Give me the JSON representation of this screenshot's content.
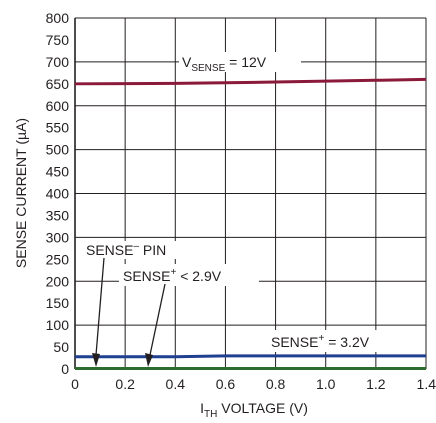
{
  "chart_data": {
    "type": "line",
    "xlabel": {
      "main": "I",
      "sub": "TH",
      "rest": " VOLTAGE (V)"
    },
    "ylabel": "SENSE CURRENT (µA)",
    "xlim": [
      0,
      1.4
    ],
    "ylim": [
      0,
      800
    ],
    "x_ticks": [
      "0",
      "0.2",
      "0.4",
      "0.6",
      "0.8",
      "1.0",
      "1.2",
      "1.4"
    ],
    "y_ticks": [
      "0",
      "50",
      "100",
      "150",
      "200",
      "250",
      "300",
      "350",
      "400",
      "450",
      "500",
      "550",
      "600",
      "650",
      "700",
      "750",
      "800"
    ],
    "grid": true,
    "series": [
      {
        "key": "vsense12",
        "color": "#8b1a3a",
        "x": [
          0,
          0.4,
          0.8,
          1.2,
          1.4
        ],
        "y": [
          650,
          651,
          654,
          658,
          660
        ]
      },
      {
        "key": "sense_plus_32",
        "color": "#1f3f8f",
        "x": [
          0,
          0.4,
          0.6,
          1.0,
          1.4
        ],
        "y": [
          28,
          28,
          30,
          30,
          30
        ]
      },
      {
        "key": "sense_minus_pin",
        "color": "#2e6b2e",
        "x": [
          0,
          0.7,
          1.4
        ],
        "y": [
          1,
          1,
          1
        ]
      }
    ],
    "annotations": {
      "vsense": {
        "v": "V",
        "sub": "SENSE",
        "rest": " = 12V"
      },
      "sense_minus": {
        "base": "SENSE",
        "sup": "–",
        "rest": " PIN"
      },
      "sense_plus_lt": {
        "base": "SENSE",
        "sup": "+",
        "rest": " < 2.9V"
      },
      "sense_plus_eq": {
        "base": "SENSE",
        "sup": "+",
        "rest": " = 3.2V"
      }
    }
  }
}
